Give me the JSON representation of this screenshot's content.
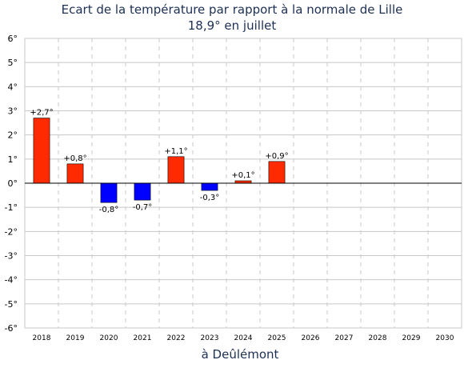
{
  "chart_data": {
    "type": "bar",
    "title": "Ecart de la température par rapport à la normale de Lille",
    "subtitle": "18,9° en juillet",
    "xlabel": "à Deûlémont",
    "ylabel": "",
    "categories": [
      "2018",
      "2019",
      "2020",
      "2021",
      "2022",
      "2023",
      "2024",
      "2025",
      "2026",
      "2027",
      "2028",
      "2029",
      "2030"
    ],
    "values": [
      2.7,
      0.8,
      -0.8,
      -0.7,
      1.1,
      -0.3,
      0.1,
      0.9,
      null,
      null,
      null,
      null,
      null
    ],
    "value_labels": [
      "+2,7°",
      "+0,8°",
      "-0,8°",
      "-0,7°",
      "+1,1°",
      "-0,3°",
      "+0,1°",
      "+0,9°",
      "",
      "",
      "",
      "",
      ""
    ],
    "ylim": [
      -6,
      6
    ],
    "yticks": [
      6,
      5,
      4,
      3,
      2,
      1,
      0,
      -1,
      -2,
      -3,
      -4,
      -5,
      -6
    ],
    "ytick_labels": [
      "6°",
      "5°",
      "4°",
      "3°",
      "2°",
      "1°",
      "0°",
      "-1°",
      "-2°",
      "-3°",
      "-4°",
      "-5°",
      "-6°"
    ],
    "grid": true,
    "colors": {
      "positive": "#ff2a00",
      "negative": "#0000ff",
      "grid": "#c8c8c8",
      "title": "#1c2f55"
    }
  }
}
